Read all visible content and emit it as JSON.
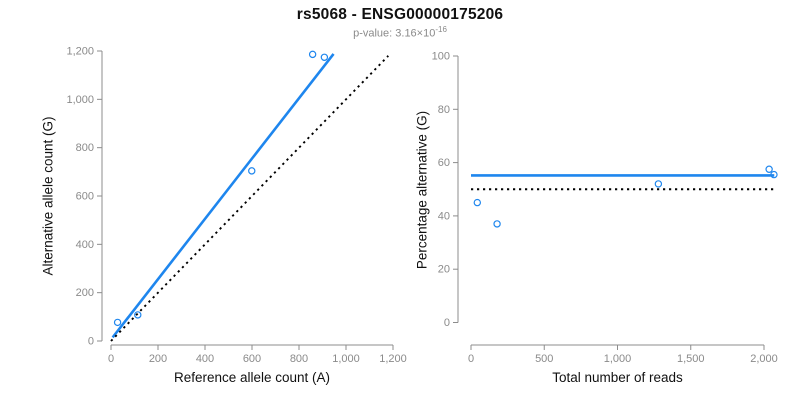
{
  "header": {
    "title": "rs5068 - ENSG00000175206",
    "p_value_text": "p-value: 3.16×10",
    "p_value_exponent": "-16"
  },
  "colors": {
    "line_blue": "#1e86ee",
    "point_blue": "#1e86ee",
    "line_black": "#000000",
    "axis": "#8c8c8c",
    "tick_label": "#8a8a8a",
    "axis_title": "#111111",
    "title": "#111111",
    "subtitle": "#8a8a8a"
  },
  "chart_data": [
    {
      "type": "scatter",
      "name": "allele-count-scatter",
      "xlabel": "Reference allele count (A)",
      "ylabel": "Alternative allele count (G)",
      "xlim": [
        0,
        1200
      ],
      "ylim": [
        0,
        1200
      ],
      "xticks": [
        0,
        200,
        400,
        600,
        800,
        1000,
        1200
      ],
      "yticks": [
        0,
        200,
        400,
        600,
        800,
        1000,
        1200
      ],
      "grid": false,
      "legend": null,
      "points": [
        [
          28,
          77
        ],
        [
          114,
          108
        ],
        [
          599,
          704
        ],
        [
          858,
          1186
        ],
        [
          908,
          1174
        ]
      ],
      "lines": [
        {
          "name": "regression-line",
          "x1": 7,
          "y1": 15,
          "x2": 947,
          "y2": 1188,
          "style": "solid",
          "color_key": "line_blue",
          "width": 2.6
        },
        {
          "name": "identity-line",
          "x1": 0,
          "y1": 0,
          "x2": 1180,
          "y2": 1180,
          "style": "dotted",
          "color_key": "line_black",
          "width": 1.9
        }
      ]
    },
    {
      "type": "scatter",
      "name": "percentage-vs-reads-scatter",
      "xlabel": "Total number of reads",
      "ylabel": "Percentage alternative (G)",
      "xlim": [
        0,
        2000
      ],
      "ylim": [
        0,
        100
      ],
      "xticks": [
        0,
        500,
        1000,
        1500,
        2000
      ],
      "yticks": [
        0,
        20,
        40,
        60,
        80,
        100
      ],
      "grid": false,
      "legend": null,
      "points": [
        [
          43,
          45
        ],
        [
          178,
          37
        ],
        [
          1279,
          52
        ],
        [
          2035,
          57.5
        ],
        [
          2068,
          55.5
        ]
      ],
      "lines": [
        {
          "name": "fitted-percentage-line",
          "x1": 0,
          "y1": 55.2,
          "x2": 2070,
          "y2": 55.2,
          "style": "solid",
          "color_key": "line_blue",
          "width": 2.6
        },
        {
          "name": "reference-50-percent-line",
          "x1": 0,
          "y1": 50,
          "x2": 2070,
          "y2": 50,
          "style": "dotted",
          "color_key": "line_black",
          "width": 1.9
        }
      ]
    }
  ]
}
